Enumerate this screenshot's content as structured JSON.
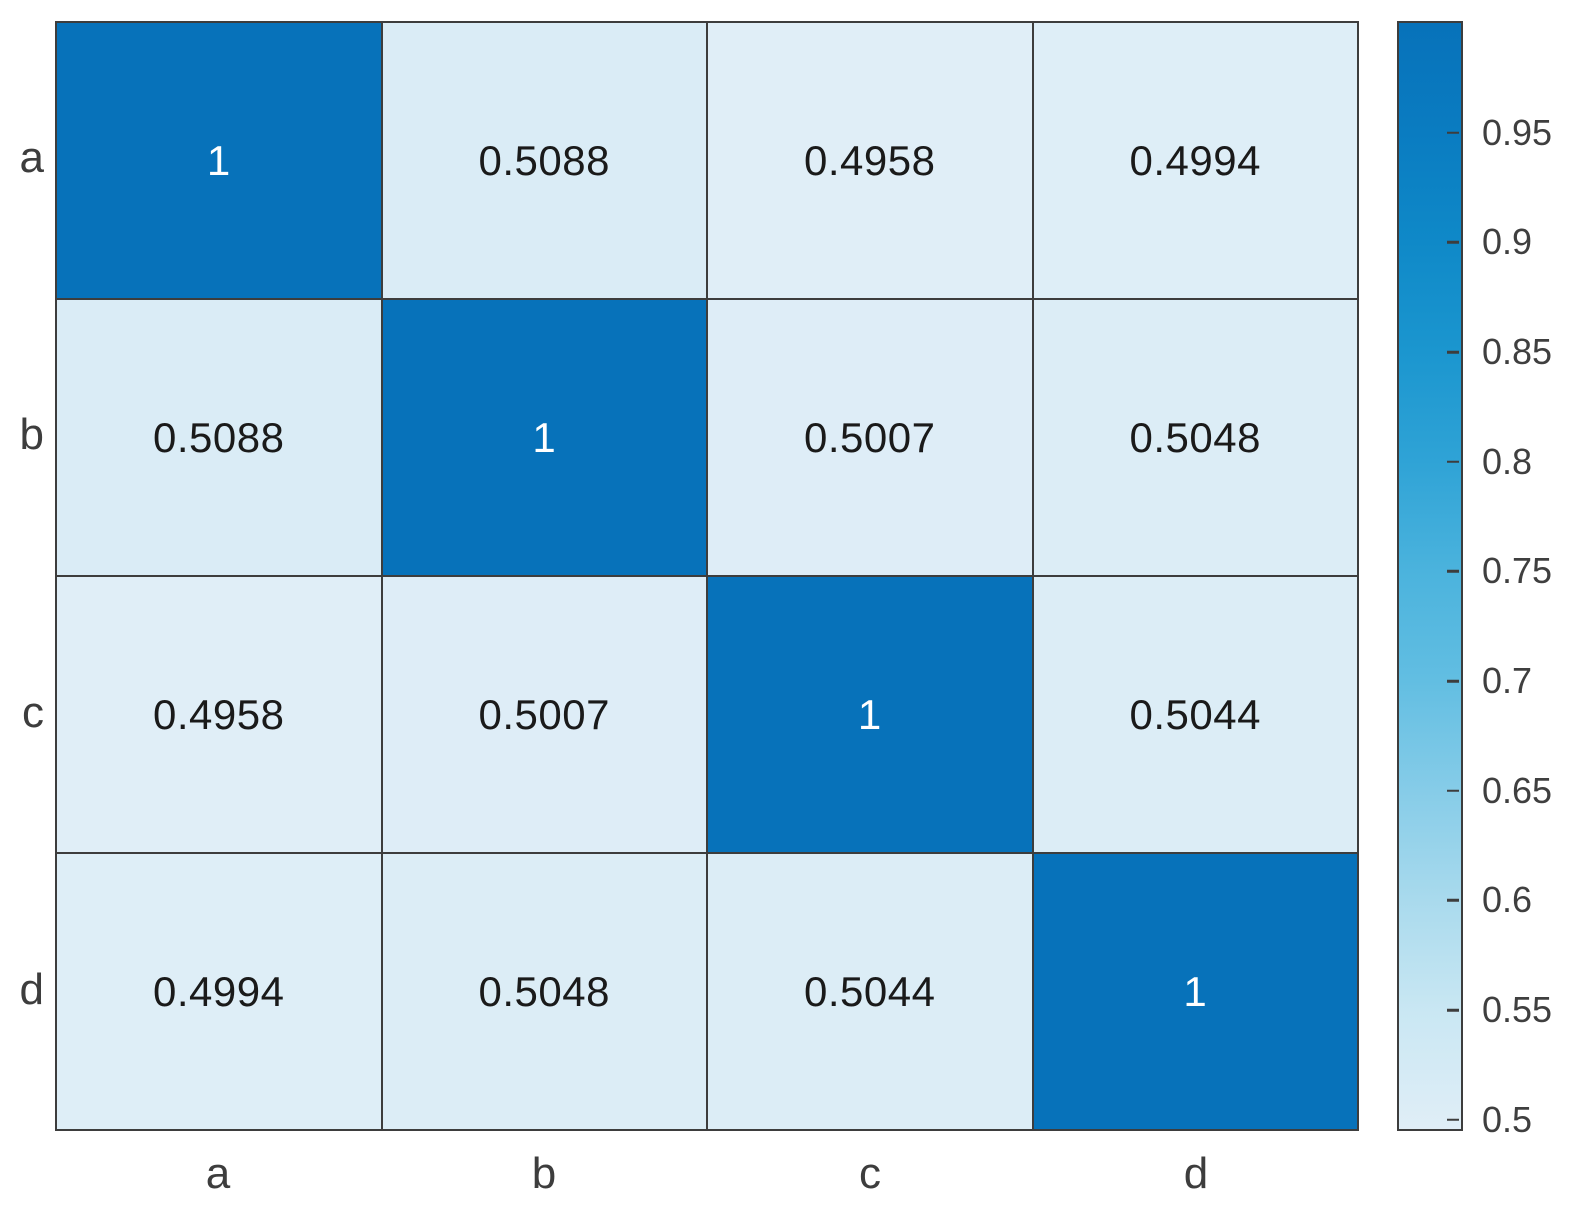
{
  "chart_data": {
    "type": "heatmap",
    "title": "",
    "xlabel": "",
    "ylabel": "",
    "x_categories": [
      "a",
      "b",
      "c",
      "d"
    ],
    "y_categories": [
      "a",
      "b",
      "c",
      "d"
    ],
    "matrix": [
      [
        1,
        0.5088,
        0.4958,
        0.4994
      ],
      [
        0.5088,
        1,
        0.5007,
        0.5048
      ],
      [
        0.4958,
        0.5007,
        1,
        0.5044
      ],
      [
        0.4994,
        0.5048,
        0.5044,
        1
      ]
    ],
    "cell_labels": [
      [
        "1",
        "0.5088",
        "0.4958",
        "0.4994"
      ],
      [
        "0.5088",
        "1",
        "0.5007",
        "0.5048"
      ],
      [
        "0.4958",
        "0.5007",
        "1",
        "0.5044"
      ],
      [
        "0.4994",
        "0.5048",
        "0.5044",
        "1"
      ]
    ],
    "grid_on": true,
    "legend_position": "colorbar-right",
    "colorbar": {
      "vmin": 0.4958,
      "vmax": 1,
      "ticks": [
        0.5,
        0.55,
        0.6,
        0.65,
        0.7,
        0.75,
        0.8,
        0.85,
        0.9,
        0.95
      ],
      "tick_labels": [
        "0.5",
        "0.55",
        "0.6",
        "0.65",
        "0.7",
        "0.75",
        "0.8",
        "0.85",
        "0.9",
        "0.95"
      ]
    },
    "colors": {
      "background": "#ffffff",
      "grid_line": "#3d3d3d",
      "axis_text": "#3d3d3d",
      "cell_text_dark": "#1a1a1a",
      "cell_text_light": "#ffffff",
      "high_cell": "#0772ba",
      "low_cell": "#deedf7",
      "gradient_stops": [
        {
          "v": 0.4958,
          "color": "#e0eef7"
        },
        {
          "v": 0.55,
          "color": "#c9e7f3"
        },
        {
          "v": 0.6,
          "color": "#a9daed"
        },
        {
          "v": 0.65,
          "color": "#86cce8"
        },
        {
          "v": 0.7,
          "color": "#62bee2"
        },
        {
          "v": 0.75,
          "color": "#4bb3dd"
        },
        {
          "v": 0.8,
          "color": "#2fa3d6"
        },
        {
          "v": 0.85,
          "color": "#1b96cf"
        },
        {
          "v": 0.9,
          "color": "#0f89c8"
        },
        {
          "v": 0.95,
          "color": "#0a7cc1"
        },
        {
          "v": 1,
          "color": "#0772ba"
        }
      ]
    }
  }
}
